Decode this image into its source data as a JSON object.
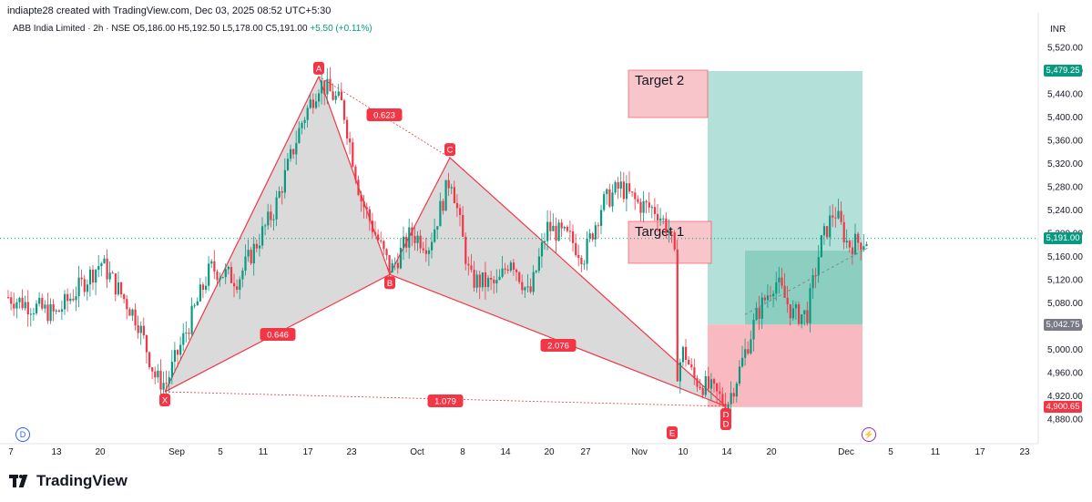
{
  "header": {
    "created_line": "indiapte28 created with TradingView.com, Dec 03, 2025 08:52 UTC+5:30",
    "symbol_line_prefix": "ABB India Limited · 2h · NSE",
    "ohlc_line": "O5,186.00 H5,192.50 L5,178.00 C5,191.00",
    "change": "+5.50 (+0.11%)"
  },
  "currency": "INR",
  "brand": "TradingView",
  "colors": {
    "up": "#089981",
    "down": "#f23645",
    "pattern_fill": "#d1d1d1",
    "pattern_line": "#f23645",
    "target_zone": "#f7c5ca",
    "profit_zone": "#b3e0d8",
    "loss_zone": "#f9b9c0"
  },
  "chart_data": {
    "type": "candlestick",
    "y_ticks": [
      "5,520.00",
      "5,480.00",
      "5,440.00",
      "5,400.00",
      "5,360.00",
      "5,320.00",
      "5,280.00",
      "5,240.00",
      "5,200.00",
      "5,160.00",
      "5,120.00",
      "5,080.00",
      "5,040.00",
      "5,000.00",
      "4,960.00",
      "4,920.00",
      "4,880.00"
    ],
    "ylim": [
      4868,
      5548
    ],
    "x_ticks": [
      "7",
      "13",
      "20",
      "Sep",
      "5",
      "11",
      "17",
      "23",
      "Oct",
      "8",
      "14",
      "20",
      "27",
      "Nov",
      "10",
      "14",
      "20",
      "Dec",
      "5",
      "11",
      "17",
      "23"
    ],
    "price_badges": [
      {
        "label": "5,479.25",
        "value": 5479.25,
        "color": "#089981"
      },
      {
        "label": "5,191.00",
        "value": 5191.0,
        "color": "#089981"
      },
      {
        "label": "5,042.75",
        "value": 5042.75,
        "color": "#787b86"
      },
      {
        "label": "4,900.65",
        "value": 4900.65,
        "color": "#f23645"
      }
    ],
    "last_price": 5191.0,
    "harmonic_points": [
      {
        "label": "X",
        "price": 4927
      },
      {
        "label": "A",
        "price": 5470
      },
      {
        "label": "B",
        "price": 5129
      },
      {
        "label": "C",
        "price": 5330
      },
      {
        "label": "D",
        "price": 4902
      }
    ],
    "ratios": [
      "0.646",
      "0.623",
      "2.076",
      "1.079"
    ],
    "targets": [
      {
        "label": "Target 2",
        "low": 5405,
        "high": 5479
      },
      {
        "label": "Target 1",
        "low": 5156,
        "high": 5206
      }
    ],
    "position": {
      "entry": 5042.75,
      "take_profit": 5479.25,
      "stop": 4900.65
    },
    "events": [
      "E",
      "D"
    ]
  }
}
